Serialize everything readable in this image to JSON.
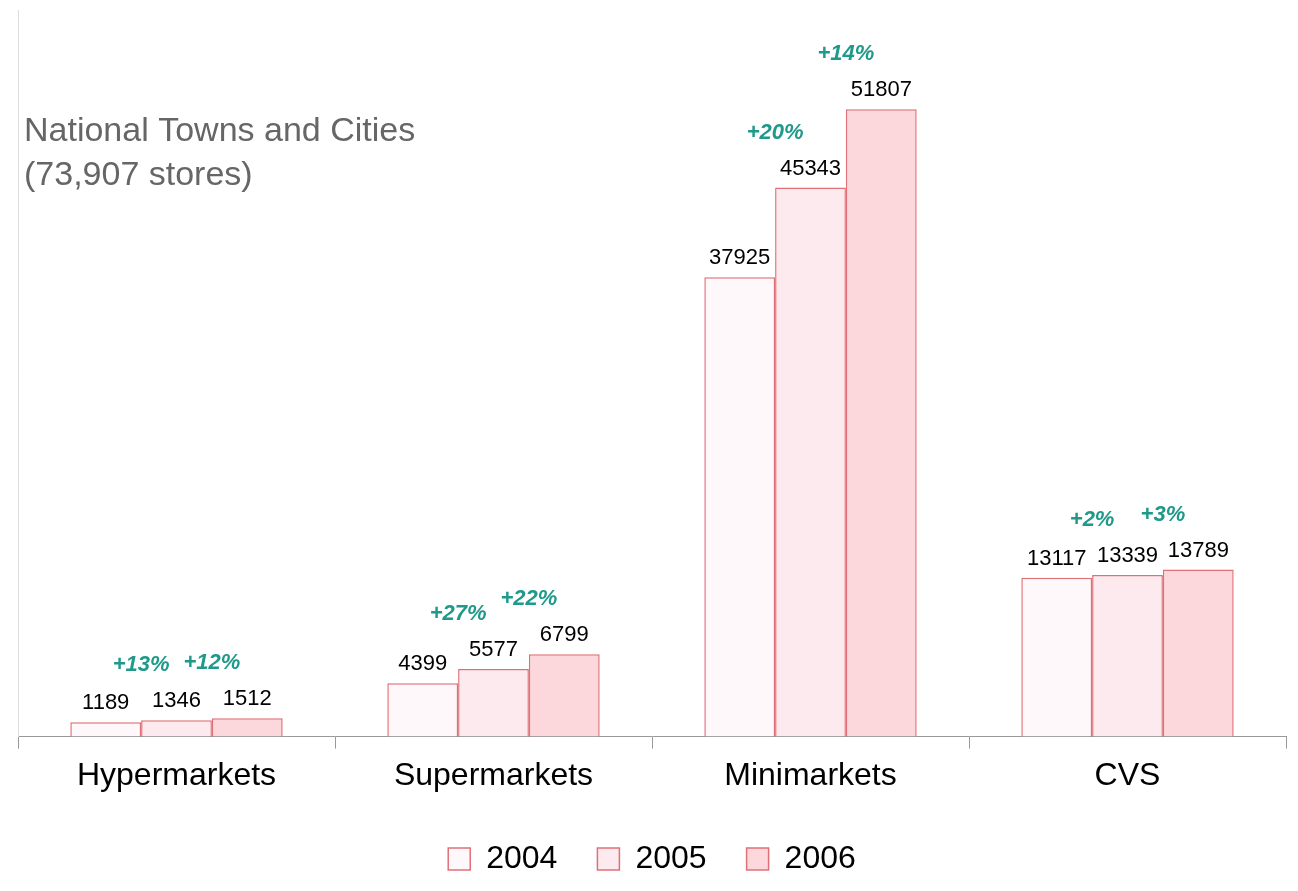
{
  "chart_data": {
    "type": "bar",
    "title": "National Towns and Cities",
    "subtitle": "(73,907 stores)",
    "categories": [
      "Hypermarkets",
      "Supermarkets",
      "Minimarkets",
      "CVS"
    ],
    "series": [
      {
        "name": "2004",
        "color": "#fef8fa",
        "values": [
          1189,
          4399,
          37925,
          13117
        ]
      },
      {
        "name": "2005",
        "color": "#fdeaee",
        "values": [
          1346,
          5577,
          45343,
          13339
        ]
      },
      {
        "name": "2006",
        "color": "#fcd7dc",
        "values": [
          1512,
          6799,
          51807,
          13789
        ]
      }
    ],
    "annotations": [
      {
        "category": "Hypermarkets",
        "from": "2004",
        "to": "2005",
        "text": "+13%"
      },
      {
        "category": "Hypermarkets",
        "from": "2005",
        "to": "2006",
        "text": "+12%"
      },
      {
        "category": "Supermarkets",
        "from": "2004",
        "to": "2005",
        "text": "+27%"
      },
      {
        "category": "Supermarkets",
        "from": "2005",
        "to": "2006",
        "text": "+22%"
      },
      {
        "category": "Minimarkets",
        "from": "2004",
        "to": "2005",
        "text": "+20%"
      },
      {
        "category": "Minimarkets",
        "from": "2005",
        "to": "2006",
        "text": "+14%"
      },
      {
        "category": "CVS",
        "from": "2004",
        "to": "2005",
        "text": "+2%"
      },
      {
        "category": "CVS",
        "from": "2005",
        "to": "2006",
        "text": "+3%"
      }
    ],
    "ylim": [
      0,
      60000
    ],
    "grid": false,
    "legend": "bottom",
    "data_labels": true,
    "tick_labels": "x"
  }
}
